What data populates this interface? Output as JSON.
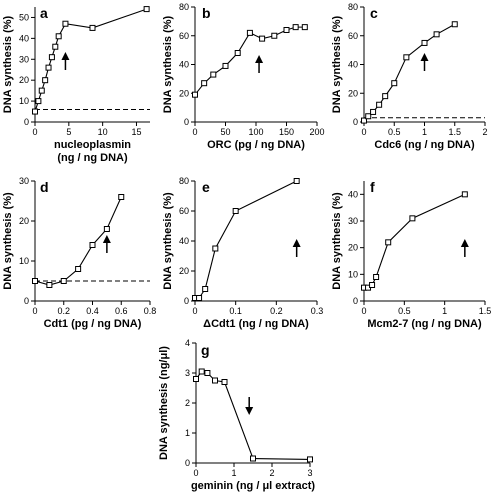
{
  "chart_data": [
    {
      "panel": "a",
      "type": "line",
      "xlabel": "nucleoplasmin\n(ng / ng DNA)",
      "ylabel": "DNA synthesis (%)",
      "xlim": [
        0,
        17
      ],
      "ylim": [
        0,
        55
      ],
      "xticks": [
        0,
        5,
        10,
        15
      ],
      "yticks": [
        0,
        10,
        20,
        30,
        40,
        50
      ],
      "x": [
        0,
        0.5,
        1,
        1.5,
        2,
        2.5,
        3,
        3.5,
        4.5,
        8.5,
        16.5
      ],
      "y": [
        5,
        10,
        15,
        20,
        26,
        31,
        36,
        41,
        47,
        45,
        54
      ],
      "baseline": 6,
      "arrow": {
        "x": 4.5,
        "direction": "up"
      }
    },
    {
      "panel": "b",
      "type": "line",
      "xlabel": "ORC (pg / ng DNA)",
      "ylabel": "DNA synthesis (%)",
      "xlim": [
        0,
        200
      ],
      "ylim": [
        0,
        80
      ],
      "xticks": [
        0,
        50,
        100,
        150,
        200
      ],
      "yticks": [
        0,
        20,
        40,
        60,
        80
      ],
      "x": [
        0,
        15,
        30,
        50,
        70,
        90,
        110,
        130,
        150,
        165,
        180
      ],
      "y": [
        19,
        27,
        33,
        39,
        48,
        62,
        58,
        60,
        64,
        66,
        66
      ],
      "arrow": {
        "x": 105,
        "direction": "up"
      }
    },
    {
      "panel": "c",
      "type": "line",
      "xlabel": "Cdc6 (ng / ng DNA)",
      "ylabel": "DNA synthesis (%)",
      "xlim": [
        0,
        2
      ],
      "ylim": [
        0,
        80
      ],
      "xticks": [
        0,
        0.5,
        1,
        1.5,
        2
      ],
      "yticks": [
        0,
        20,
        40,
        60,
        80
      ],
      "x": [
        0,
        0.07,
        0.15,
        0.25,
        0.35,
        0.5,
        0.7,
        1.0,
        1.2,
        1.5
      ],
      "y": [
        1,
        4,
        7,
        12,
        18,
        27,
        45,
        55,
        61,
        68
      ],
      "baseline": 3,
      "arrow": {
        "x": 1.0,
        "direction": "up"
      }
    },
    {
      "panel": "d",
      "type": "line",
      "xlabel": "Cdt1 (pg / ng DNA)",
      "ylabel": "DNA synthesis (%)",
      "xlim": [
        0,
        0.8
      ],
      "ylim": [
        0,
        30
      ],
      "xticks": [
        0,
        0.2,
        0.4,
        0.6,
        0.8
      ],
      "yticks": [
        0,
        10,
        20,
        30
      ],
      "x": [
        0,
        0.1,
        0.2,
        0.3,
        0.4,
        0.5,
        0.6
      ],
      "y": [
        5,
        4,
        5,
        8,
        14,
        18,
        26
      ],
      "baseline": 5,
      "arrow": {
        "x": 0.5,
        "direction": "up"
      }
    },
    {
      "panel": "e",
      "type": "line",
      "xlabel": "ΔCdt1 (ng / ng DNA)",
      "ylabel": "DNA synthesis (%)",
      "xlim": [
        0,
        0.3
      ],
      "ylim": [
        0,
        80
      ],
      "xticks": [
        0,
        0.1,
        0.2,
        0.3
      ],
      "yticks": [
        0,
        20,
        40,
        60,
        80
      ],
      "x": [
        0,
        0.01,
        0.025,
        0.05,
        0.1,
        0.25
      ],
      "y": [
        2,
        2,
        8,
        35,
        60,
        80
      ],
      "arrow": {
        "x": 0.25,
        "direction": "up"
      }
    },
    {
      "panel": "f",
      "type": "line",
      "xlabel": "Mcm2-7 (ng / ng DNA)",
      "ylabel": "DNA synthesis (%)",
      "xlim": [
        0,
        1.5
      ],
      "ylim": [
        0,
        45
      ],
      "xticks": [
        0,
        0.5,
        1,
        1.5
      ],
      "yticks": [
        0,
        10,
        20,
        30,
        40
      ],
      "x": [
        0,
        0.05,
        0.1,
        0.15,
        0.3,
        0.6,
        1.25
      ],
      "y": [
        5,
        5,
        6,
        9,
        22,
        31,
        40
      ],
      "arrow": {
        "x": 1.25,
        "direction": "up"
      }
    },
    {
      "panel": "g",
      "type": "line",
      "xlabel": "geminin (ng / μl extract)",
      "ylabel": "DNA synthesis (ng/μl)",
      "xlim": [
        0,
        3
      ],
      "ylim": [
        0,
        4
      ],
      "xticks": [
        0,
        1,
        2,
        3
      ],
      "yticks": [
        0,
        1,
        2,
        3,
        4
      ],
      "x": [
        0,
        0.15,
        0.3,
        0.5,
        0.75,
        1.5,
        3.0
      ],
      "y": [
        2.8,
        3.05,
        3.0,
        2.75,
        2.7,
        0.15,
        0.12
      ],
      "arrow": {
        "x": 1.4,
        "direction": "down"
      }
    }
  ]
}
